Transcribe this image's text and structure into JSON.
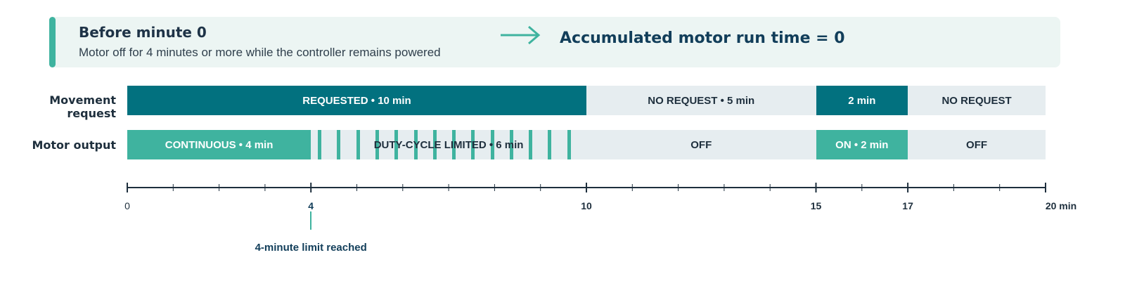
{
  "banner": {
    "title": "Before minute 0",
    "subtitle": "Motor off for 4 minutes or more while the controller remains powered",
    "result": "Accumulated motor run time = 0",
    "arrow_icon": "arrow-right-icon",
    "accent_color": "#3fb39f"
  },
  "timeline": {
    "axis_min": 0,
    "axis_max": 20,
    "tick_step": 1,
    "tick_labels": [
      {
        "value": 0,
        "label": "0"
      },
      {
        "value": 4,
        "label": "4"
      },
      {
        "value": 10,
        "label": "10"
      },
      {
        "value": 15,
        "label": "15"
      },
      {
        "value": 17,
        "label": "17"
      },
      {
        "value": 20,
        "label": "20 min"
      }
    ],
    "marker": {
      "value": 4,
      "label": "4-minute limit reached"
    }
  },
  "rows": [
    {
      "label": "Movement request",
      "segments": [
        {
          "start": 0,
          "end": 10,
          "label": "REQUESTED • 10 min",
          "style": "req-dark"
        },
        {
          "start": 10,
          "end": 15,
          "label": "NO REQUEST • 5 min",
          "style": "req-light"
        },
        {
          "start": 15,
          "end": 17,
          "label": "2 min",
          "style": "req-dark"
        },
        {
          "start": 17,
          "end": 20,
          "label": "NO REQUEST",
          "style": "req-light"
        }
      ]
    },
    {
      "label": "Motor output",
      "segments": [
        {
          "start": 0,
          "end": 4,
          "label": "CONTINUOUS • 4 min",
          "style": "mot-on"
        },
        {
          "start": 4,
          "end": 10,
          "label": "DUTY-CYCLE LIMITED • 6 min",
          "style": "duty",
          "pulses": 14
        },
        {
          "start": 10,
          "end": 15,
          "label": "OFF",
          "style": "mot-off"
        },
        {
          "start": 15,
          "end": 17,
          "label": "ON • 2 min",
          "style": "mot-on"
        },
        {
          "start": 17,
          "end": 20,
          "label": "OFF",
          "style": "mot-off"
        }
      ]
    }
  ],
  "colors": {
    "request_active": "#02717f",
    "motor_active": "#3fb39f",
    "inactive": "#e6edf0",
    "axis": "#1e2f3d"
  }
}
